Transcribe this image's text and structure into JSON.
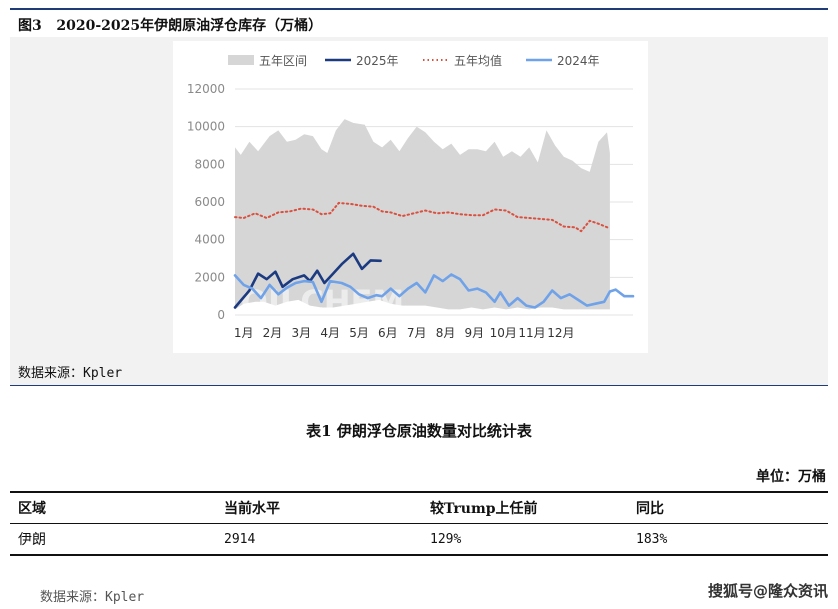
{
  "figure": {
    "label": "图3",
    "title": "2020-2025年伊朗原油浮仓库存（万桶）",
    "source": "数据来源：Kpler",
    "watermark": "OILCHEM"
  },
  "chart_data": {
    "type": "area",
    "title": "",
    "ylim": [
      0,
      12000
    ],
    "yticks": [
      "0",
      "2000",
      "4000",
      "6000",
      "8000",
      "10000",
      "12000"
    ],
    "xticks": [
      "1月",
      "2月",
      "3月",
      "4月",
      "5月",
      "6月",
      "7月",
      "8月",
      "9月",
      "10月",
      "11月",
      "12月"
    ],
    "grid": true,
    "legend_position": "top",
    "legend": [
      {
        "name": "五年区间",
        "color": "#d6d6d6",
        "style": "area"
      },
      {
        "name": "2025年",
        "color": "#1b3a80",
        "style": "solid"
      },
      {
        "name": "五年均值",
        "color": "#d9503f",
        "style": "dotted"
      },
      {
        "name": "2024年",
        "color": "#6fa2e8",
        "style": "solid"
      }
    ],
    "x_unit": "month (1-13)",
    "range_upper": [
      [
        1,
        8900
      ],
      [
        1.2,
        8500
      ],
      [
        1.5,
        9200
      ],
      [
        1.8,
        8700
      ],
      [
        2.2,
        9500
      ],
      [
        2.5,
        9800
      ],
      [
        2.8,
        9200
      ],
      [
        3.1,
        9300
      ],
      [
        3.4,
        9600
      ],
      [
        3.7,
        9500
      ],
      [
        4,
        8800
      ],
      [
        4.2,
        8600
      ],
      [
        4.5,
        9800
      ],
      [
        4.8,
        10400
      ],
      [
        5.1,
        10200
      ],
      [
        5.5,
        10100
      ],
      [
        5.8,
        9200
      ],
      [
        6.1,
        8900
      ],
      [
        6.4,
        9300
      ],
      [
        6.7,
        8700
      ],
      [
        7,
        9400
      ],
      [
        7.3,
        10000
      ],
      [
        7.6,
        9700
      ],
      [
        7.9,
        9200
      ],
      [
        8.2,
        8800
      ],
      [
        8.5,
        9100
      ],
      [
        8.8,
        8500
      ],
      [
        9.1,
        8800
      ],
      [
        9.4,
        8800
      ],
      [
        9.7,
        8700
      ],
      [
        10,
        9200
      ],
      [
        10.3,
        8400
      ],
      [
        10.6,
        8700
      ],
      [
        10.9,
        8400
      ],
      [
        11.2,
        8900
      ],
      [
        11.5,
        8100
      ],
      [
        11.8,
        9800
      ],
      [
        12.1,
        9000
      ],
      [
        12.4,
        8400
      ],
      [
        12.7,
        8200
      ],
      [
        13,
        7800
      ],
      [
        13.3,
        7600
      ],
      [
        13.6,
        9200
      ],
      [
        13.9,
        9700
      ],
      [
        14,
        8600
      ]
    ],
    "range_lower": [
      [
        1,
        300
      ],
      [
        1.3,
        600
      ],
      [
        1.7,
        700
      ],
      [
        2,
        700
      ],
      [
        2.4,
        500
      ],
      [
        2.8,
        700
      ],
      [
        3.2,
        800
      ],
      [
        3.6,
        500
      ],
      [
        4,
        400
      ],
      [
        4.4,
        400
      ],
      [
        4.8,
        500
      ],
      [
        5.2,
        600
      ],
      [
        5.6,
        700
      ],
      [
        6,
        800
      ],
      [
        6.4,
        600
      ],
      [
        6.8,
        500
      ],
      [
        7.2,
        500
      ],
      [
        7.6,
        500
      ],
      [
        8,
        400
      ],
      [
        8.4,
        300
      ],
      [
        8.8,
        300
      ],
      [
        9.2,
        400
      ],
      [
        9.6,
        300
      ],
      [
        10,
        400
      ],
      [
        10.4,
        300
      ],
      [
        10.8,
        400
      ],
      [
        11.2,
        300
      ],
      [
        11.6,
        400
      ],
      [
        12,
        400
      ],
      [
        12.4,
        300
      ],
      [
        12.8,
        300
      ],
      [
        13.2,
        300
      ],
      [
        13.6,
        300
      ],
      [
        14,
        300
      ]
    ],
    "series": [
      {
        "name": "2025年",
        "color": "#1b3a80",
        "points": [
          [
            1,
            400
          ],
          [
            1.5,
            1300
          ],
          [
            1.8,
            2200
          ],
          [
            2.1,
            1900
          ],
          [
            2.4,
            2300
          ],
          [
            2.65,
            1500
          ],
          [
            3,
            1900
          ],
          [
            3.4,
            2100
          ],
          [
            3.6,
            1800
          ],
          [
            3.85,
            2350
          ],
          [
            4.1,
            1700
          ],
          [
            4.4,
            2200
          ],
          [
            4.7,
            2700
          ],
          [
            5.1,
            3250
          ],
          [
            5.4,
            2450
          ],
          [
            5.7,
            2900
          ],
          [
            6.05,
            2880
          ]
        ]
      },
      {
        "name": "五年均值",
        "color": "#d9503f",
        "points": [
          [
            1,
            5200
          ],
          [
            1.3,
            5150
          ],
          [
            1.7,
            5400
          ],
          [
            2.1,
            5150
          ],
          [
            2.5,
            5450
          ],
          [
            2.9,
            5500
          ],
          [
            3.3,
            5650
          ],
          [
            3.7,
            5600
          ],
          [
            4,
            5350
          ],
          [
            4.3,
            5400
          ],
          [
            4.6,
            5950
          ],
          [
            5,
            5900
          ],
          [
            5.4,
            5800
          ],
          [
            5.8,
            5750
          ],
          [
            6.1,
            5500
          ],
          [
            6.4,
            5450
          ],
          [
            6.8,
            5250
          ],
          [
            7.2,
            5400
          ],
          [
            7.6,
            5550
          ],
          [
            8,
            5400
          ],
          [
            8.4,
            5450
          ],
          [
            8.8,
            5350
          ],
          [
            9.2,
            5300
          ],
          [
            9.6,
            5300
          ],
          [
            10,
            5600
          ],
          [
            10.4,
            5550
          ],
          [
            10.8,
            5200
          ],
          [
            11.2,
            5150
          ],
          [
            11.6,
            5100
          ],
          [
            12,
            5050
          ],
          [
            12.4,
            4700
          ],
          [
            12.8,
            4650
          ],
          [
            13,
            4450
          ],
          [
            13.3,
            5000
          ],
          [
            13.6,
            4850
          ],
          [
            14,
            4600
          ]
        ]
      },
      {
        "name": "2024年",
        "color": "#6fa2e8",
        "points": [
          [
            1,
            2100
          ],
          [
            1.3,
            1600
          ],
          [
            1.6,
            1400
          ],
          [
            1.9,
            900
          ],
          [
            2.2,
            1600
          ],
          [
            2.5,
            1100
          ],
          [
            2.8,
            1450
          ],
          [
            3.1,
            1700
          ],
          [
            3.4,
            1800
          ],
          [
            3.7,
            1750
          ],
          [
            4,
            700
          ],
          [
            4.3,
            1800
          ],
          [
            4.7,
            1700
          ],
          [
            5,
            1500
          ],
          [
            5.3,
            1100
          ],
          [
            5.6,
            900
          ],
          [
            5.9,
            1050
          ],
          [
            6.1,
            1000
          ],
          [
            6.4,
            1400
          ],
          [
            6.7,
            1000
          ],
          [
            7,
            1400
          ],
          [
            7.3,
            1700
          ],
          [
            7.6,
            1200
          ],
          [
            7.9,
            2100
          ],
          [
            8.2,
            1800
          ],
          [
            8.5,
            2150
          ],
          [
            8.8,
            1900
          ],
          [
            9.1,
            1300
          ],
          [
            9.4,
            1400
          ],
          [
            9.7,
            1200
          ],
          [
            10,
            700
          ],
          [
            10.2,
            1200
          ],
          [
            10.5,
            500
          ],
          [
            10.8,
            900
          ],
          [
            11.1,
            500
          ],
          [
            11.4,
            400
          ],
          [
            11.7,
            700
          ],
          [
            12,
            1300
          ],
          [
            12.3,
            900
          ],
          [
            12.6,
            1100
          ],
          [
            12.9,
            800
          ],
          [
            13.2,
            500
          ],
          [
            13.5,
            600
          ],
          [
            13.8,
            700
          ],
          [
            14,
            1250
          ],
          [
            14.2,
            1350
          ],
          [
            14.5,
            1000
          ],
          [
            14.8,
            1000
          ]
        ]
      }
    ]
  },
  "table": {
    "title": "表1  伊朗浮仓原油数量对比统计表",
    "unit": "单位：万桶",
    "headers": [
      "区域",
      "当前水平",
      "较Trump上任前",
      "同比"
    ],
    "rows": [
      [
        "伊朗",
        "2914",
        "129%",
        "183%"
      ]
    ],
    "source": "数据来源：Kpler"
  },
  "footer": {
    "watermark": "搜狐号@隆众资讯"
  }
}
